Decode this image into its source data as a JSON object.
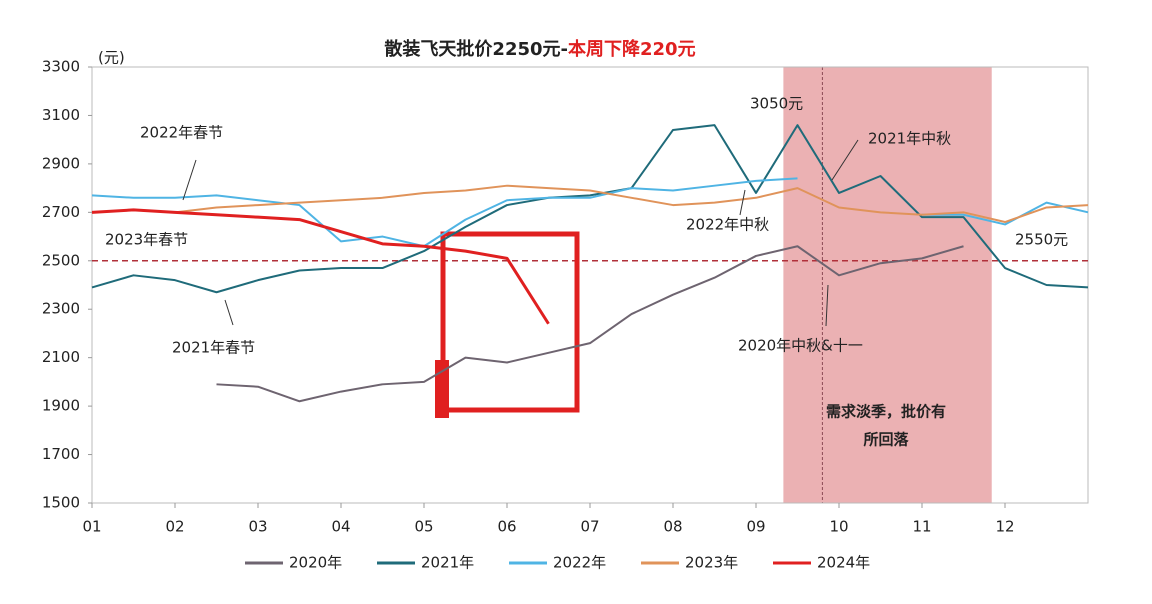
{
  "chart_data": {
    "type": "line",
    "title": "散装飞天批价2250元-",
    "title_highlight": "本周下降220元",
    "title_highlight_color": "#e02020",
    "y_unit": "(元)",
    "x": [
      1,
      1.5,
      2,
      2.5,
      3,
      3.5,
      4,
      4.5,
      5,
      5.5,
      6,
      6.5,
      7,
      7.5,
      8,
      8.5,
      9,
      9.5,
      10,
      10.5,
      11,
      11.5,
      12,
      12.5,
      13
    ],
    "xlim": [
      1,
      13
    ],
    "xticks": [
      {
        "value": 1,
        "label": "01"
      },
      {
        "value": 2,
        "label": "02"
      },
      {
        "value": 3,
        "label": "03"
      },
      {
        "value": 4,
        "label": "04"
      },
      {
        "value": 5,
        "label": "05"
      },
      {
        "value": 6,
        "label": "06"
      },
      {
        "value": 7,
        "label": "07"
      },
      {
        "value": 8,
        "label": "08"
      },
      {
        "value": 9,
        "label": "09"
      },
      {
        "value": 10,
        "label": "10"
      },
      {
        "value": 11,
        "label": "11"
      },
      {
        "value": 12,
        "label": "12"
      }
    ],
    "ylim": [
      1500,
      3300
    ],
    "yticks": [
      1500,
      1700,
      1900,
      2100,
      2300,
      2500,
      2700,
      2900,
      3100,
      3300
    ],
    "grid": false,
    "legend": "bottom",
    "reference_line": 2500,
    "reference_color": "#b0303a",
    "shaded_range": [
      9.33,
      11.84
    ],
    "shaded_color": "#e8a3a6",
    "series": [
      {
        "name": "2020年",
        "color": "#6e6470",
        "values": [
          null,
          null,
          null,
          1990,
          1980,
          1920,
          1960,
          1990,
          2000,
          2100,
          2080,
          2120,
          2160,
          2280,
          2360,
          2430,
          2520,
          2560,
          2440,
          2490,
          2510,
          2560,
          null,
          null,
          null
        ]
      },
      {
        "name": "2021年",
        "color": "#1f6b7a",
        "values": [
          2390,
          2440,
          2420,
          2370,
          2420,
          2460,
          2470,
          2470,
          2540,
          2640,
          2730,
          2760,
          2770,
          2800,
          3040,
          3060,
          2780,
          3060,
          2780,
          2850,
          2680,
          2680,
          2470,
          2400,
          2390
        ]
      },
      {
        "name": "2022年",
        "color": "#4fb4e4",
        "values": [
          2770,
          2760,
          2760,
          2770,
          2750,
          2730,
          2580,
          2600,
          2560,
          2670,
          2750,
          2760,
          2760,
          2800,
          2790,
          2810,
          2830,
          2840,
          null,
          null,
          2690,
          2690,
          2650,
          2740,
          2700
        ]
      },
      {
        "name": "2023年",
        "color": "#e0935a",
        "values": [
          2700,
          2710,
          2700,
          2720,
          2730,
          2740,
          2750,
          2760,
          2780,
          2790,
          2810,
          2800,
          2790,
          2760,
          2730,
          2740,
          2760,
          2800,
          2720,
          2700,
          2690,
          2700,
          2660,
          2720,
          2730
        ]
      },
      {
        "name": "2024年",
        "color": "#e02020",
        "values": [
          2700,
          2710,
          2700,
          2690,
          2680,
          2670,
          2620,
          2570,
          2560,
          2540,
          2510,
          2240,
          null,
          null,
          null,
          null,
          null,
          null,
          null,
          null,
          null,
          null,
          null,
          null,
          null
        ]
      }
    ],
    "annotations": [
      "3050元",
      "2021年中秋",
      "2022年春节",
      "2023年春节",
      "2021年春节",
      "2022年中秋",
      "2020年中秋&十一",
      "2550元",
      "需求淡季，批价有",
      "所回落"
    ]
  }
}
